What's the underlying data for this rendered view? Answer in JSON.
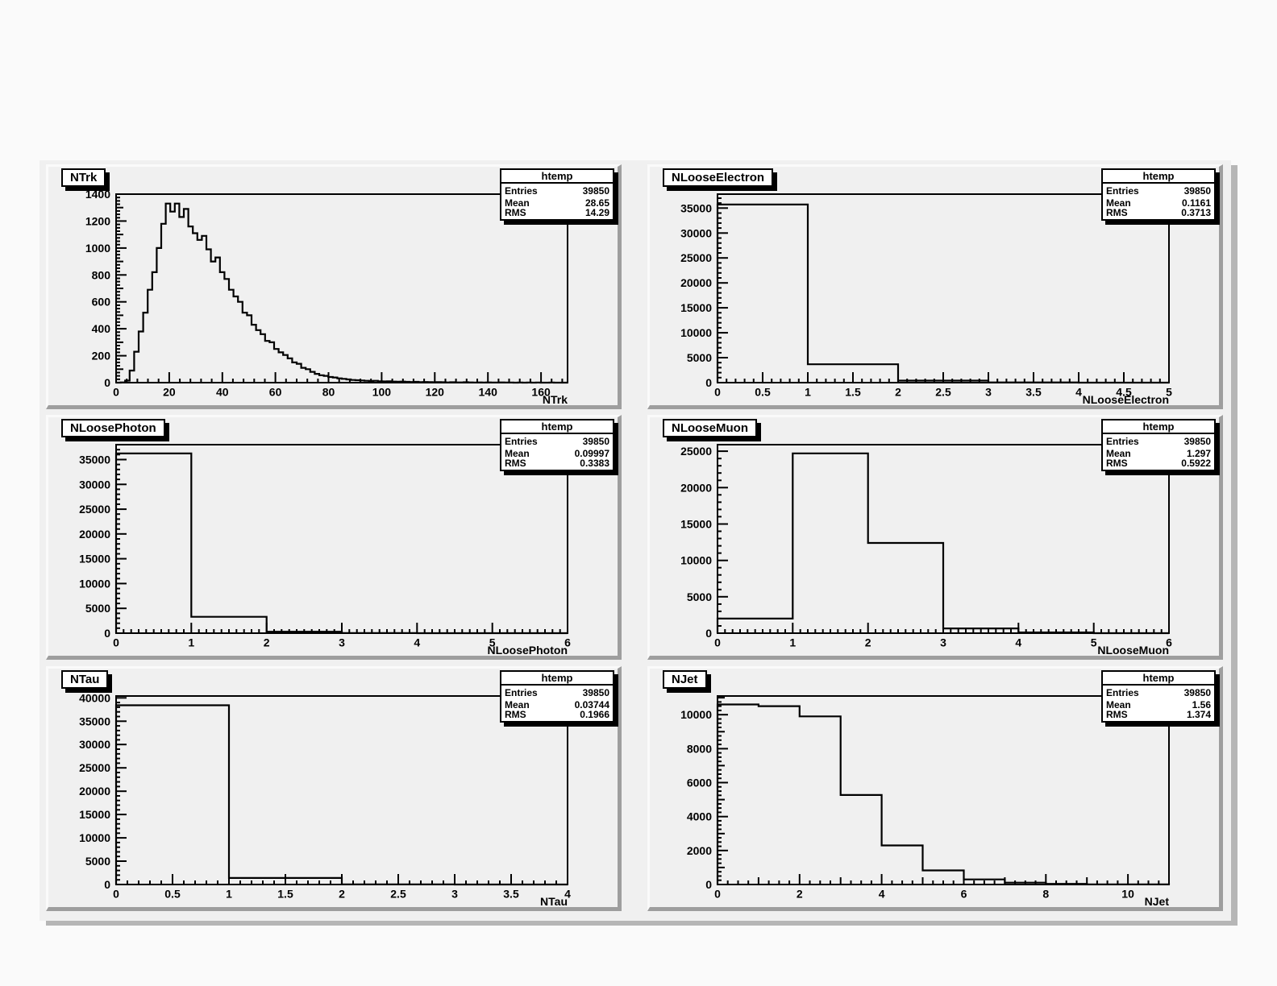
{
  "page": {
    "background": "#fafafa"
  },
  "canvas": {
    "background": "#f0f0f0",
    "pad_background": "#f0f0f0",
    "pad_highlight": "#fafafa",
    "pad_shadow": "#9e9e9e",
    "canvas_shadow": "#b6b6b6",
    "line_color": "#000000",
    "box_background": "#ffffff",
    "box_border": "#000000"
  },
  "stats_labels": {
    "entries": "Entries",
    "mean": "Mean",
    "rms": "RMS"
  },
  "chart_data": [
    {
      "type": "bar",
      "style": "root-histogram-step-outline",
      "title": "NTrk",
      "xlabel": "NTrk",
      "ylabel": "",
      "legend": "none",
      "grid": false,
      "stats": {
        "name": "htemp",
        "entries": "39850",
        "mean": "28.65",
        "rms": "14.29"
      },
      "xlim": [
        0,
        170
      ],
      "ylim": [
        0,
        1400
      ],
      "x_axis": {
        "major": 20,
        "mid": null,
        "minor": 4
      },
      "y_axis": {
        "major": 200,
        "mid": 100,
        "minor": 25
      },
      "x_ticks": [
        "0",
        "20",
        "40",
        "60",
        "80",
        "100",
        "120",
        "140",
        "160"
      ],
      "y_ticks": [
        "0",
        "200",
        "400",
        "600",
        "800",
        "1000",
        "1200",
        "1400"
      ],
      "bin_start": 0,
      "bin_width": 1.7,
      "values": [
        0,
        2,
        15,
        90,
        230,
        380,
        520,
        690,
        820,
        1000,
        1180,
        1330,
        1270,
        1330,
        1230,
        1290,
        1160,
        1110,
        1060,
        1090,
        990,
        900,
        930,
        820,
        770,
        690,
        640,
        600,
        520,
        500,
        430,
        390,
        360,
        310,
        300,
        250,
        225,
        205,
        180,
        150,
        140,
        110,
        100,
        80,
        65,
        55,
        50,
        42,
        38,
        32,
        28,
        24,
        20,
        18,
        16,
        14,
        12,
        14,
        10,
        9,
        10,
        8,
        7,
        8,
        6,
        5,
        6,
        4,
        5,
        4,
        3,
        4,
        3,
        2,
        3,
        2,
        2,
        3,
        2,
        1,
        2,
        1,
        2,
        1,
        1,
        2,
        1,
        1,
        0,
        1,
        0,
        1,
        0,
        1,
        0,
        0,
        1,
        0,
        0,
        0
      ]
    },
    {
      "type": "bar",
      "style": "root-histogram-step-outline",
      "title": "NLooseElectron",
      "xlabel": "NLooseElectron",
      "ylabel": "",
      "legend": "none",
      "grid": false,
      "stats": {
        "name": "htemp",
        "entries": "39850",
        "mean": "0.1161",
        "rms": "0.3713"
      },
      "xlim": [
        0,
        5
      ],
      "ylim": [
        0,
        37800
      ],
      "x_axis": {
        "major": 0.5,
        "mid": null,
        "minor": 0.1
      },
      "y_axis": {
        "major": 5000,
        "mid": null,
        "minor": 1000
      },
      "x_ticks": [
        "0",
        "0.5",
        "1",
        "1.5",
        "2",
        "2.5",
        "3",
        "3.5",
        "4",
        "4.5",
        "5"
      ],
      "y_ticks": [
        "0",
        "5000",
        "10000",
        "15000",
        "20000",
        "25000",
        "30000",
        "35000"
      ],
      "bin_start": 0,
      "bin_width": 1,
      "values": [
        35723,
        3677,
        400,
        45,
        5
      ]
    },
    {
      "type": "bar",
      "style": "root-histogram-step-outline",
      "title": "NLoosePhoton",
      "xlabel": "NLoosePhoton",
      "ylabel": "",
      "legend": "none",
      "grid": false,
      "stats": {
        "name": "htemp",
        "entries": "39850",
        "mean": "0.09997",
        "rms": "0.3383"
      },
      "xlim": [
        0,
        6
      ],
      "ylim": [
        0,
        38000
      ],
      "x_axis": {
        "major": 1,
        "mid": null,
        "minor": 0.1
      },
      "y_axis": {
        "major": 5000,
        "mid": null,
        "minor": 1000
      },
      "x_ticks": [
        "0",
        "1",
        "2",
        "3",
        "4",
        "5",
        "6"
      ],
      "y_ticks": [
        "0",
        "5000",
        "10000",
        "15000",
        "20000",
        "25000",
        "30000",
        "35000"
      ],
      "bin_start": 0,
      "bin_width": 1,
      "values": [
        36226,
        3294,
        300,
        30,
        0,
        0
      ]
    },
    {
      "type": "bar",
      "style": "root-histogram-step-outline",
      "title": "NLooseMuon",
      "xlabel": "NLooseMuon",
      "ylabel": "",
      "legend": "none",
      "grid": false,
      "stats": {
        "name": "htemp",
        "entries": "39850",
        "mean": "1.297",
        "rms": "0.5922"
      },
      "xlim": [
        0,
        6
      ],
      "ylim": [
        0,
        25900
      ],
      "x_axis": {
        "major": 1,
        "mid": null,
        "minor": 0.1
      },
      "y_axis": {
        "major": 5000,
        "mid": null,
        "minor": 1000
      },
      "x_ticks": [
        "0",
        "1",
        "2",
        "3",
        "4",
        "5",
        "6"
      ],
      "y_ticks": [
        "0",
        "5000",
        "10000",
        "15000",
        "20000",
        "25000"
      ],
      "bin_start": 0,
      "bin_width": 1,
      "values": [
        2000,
        24700,
        12400,
        650,
        100,
        0
      ]
    },
    {
      "type": "bar",
      "style": "root-histogram-step-outline",
      "title": "NTau",
      "xlabel": "NTau",
      "ylabel": "",
      "legend": "none",
      "grid": false,
      "stats": {
        "name": "htemp",
        "entries": "39850",
        "mean": "0.03744",
        "rms": "0.1966"
      },
      "xlim": [
        0,
        4
      ],
      "ylim": [
        0,
        40400
      ],
      "x_axis": {
        "major": 0.5,
        "mid": null,
        "minor": 0.1
      },
      "y_axis": {
        "major": 5000,
        "mid": null,
        "minor": 1000
      },
      "x_ticks": [
        "0",
        "0.5",
        "1",
        "1.5",
        "2",
        "2.5",
        "3",
        "3.5",
        "4"
      ],
      "y_ticks": [
        "0",
        "5000",
        "10000",
        "15000",
        "20000",
        "25000",
        "30000",
        "35000",
        "40000"
      ],
      "bin_start": 0,
      "bin_width": 1,
      "values": [
        38410,
        1400,
        40,
        0
      ]
    },
    {
      "type": "bar",
      "style": "root-histogram-step-outline",
      "title": "NJet",
      "xlabel": "NJet",
      "ylabel": "",
      "legend": "none",
      "grid": false,
      "stats": {
        "name": "htemp",
        "entries": "39850",
        "mean": "1.56",
        "rms": "1.374"
      },
      "xlim": [
        0,
        11
      ],
      "ylim": [
        0,
        11100
      ],
      "x_axis": {
        "major": 2,
        "mid": 1,
        "minor": 0.25
      },
      "y_axis": {
        "major": 2000,
        "mid": 1000,
        "minor": 250
      },
      "x_ticks": [
        "0",
        "2",
        "4",
        "6",
        "8",
        "10"
      ],
      "y_ticks": [
        "0",
        "2000",
        "4000",
        "6000",
        "8000",
        "10000"
      ],
      "bin_start": 0,
      "bin_width": 1,
      "values": [
        10600,
        10500,
        9900,
        5270,
        2300,
        830,
        300,
        110,
        40,
        10,
        5
      ]
    }
  ]
}
